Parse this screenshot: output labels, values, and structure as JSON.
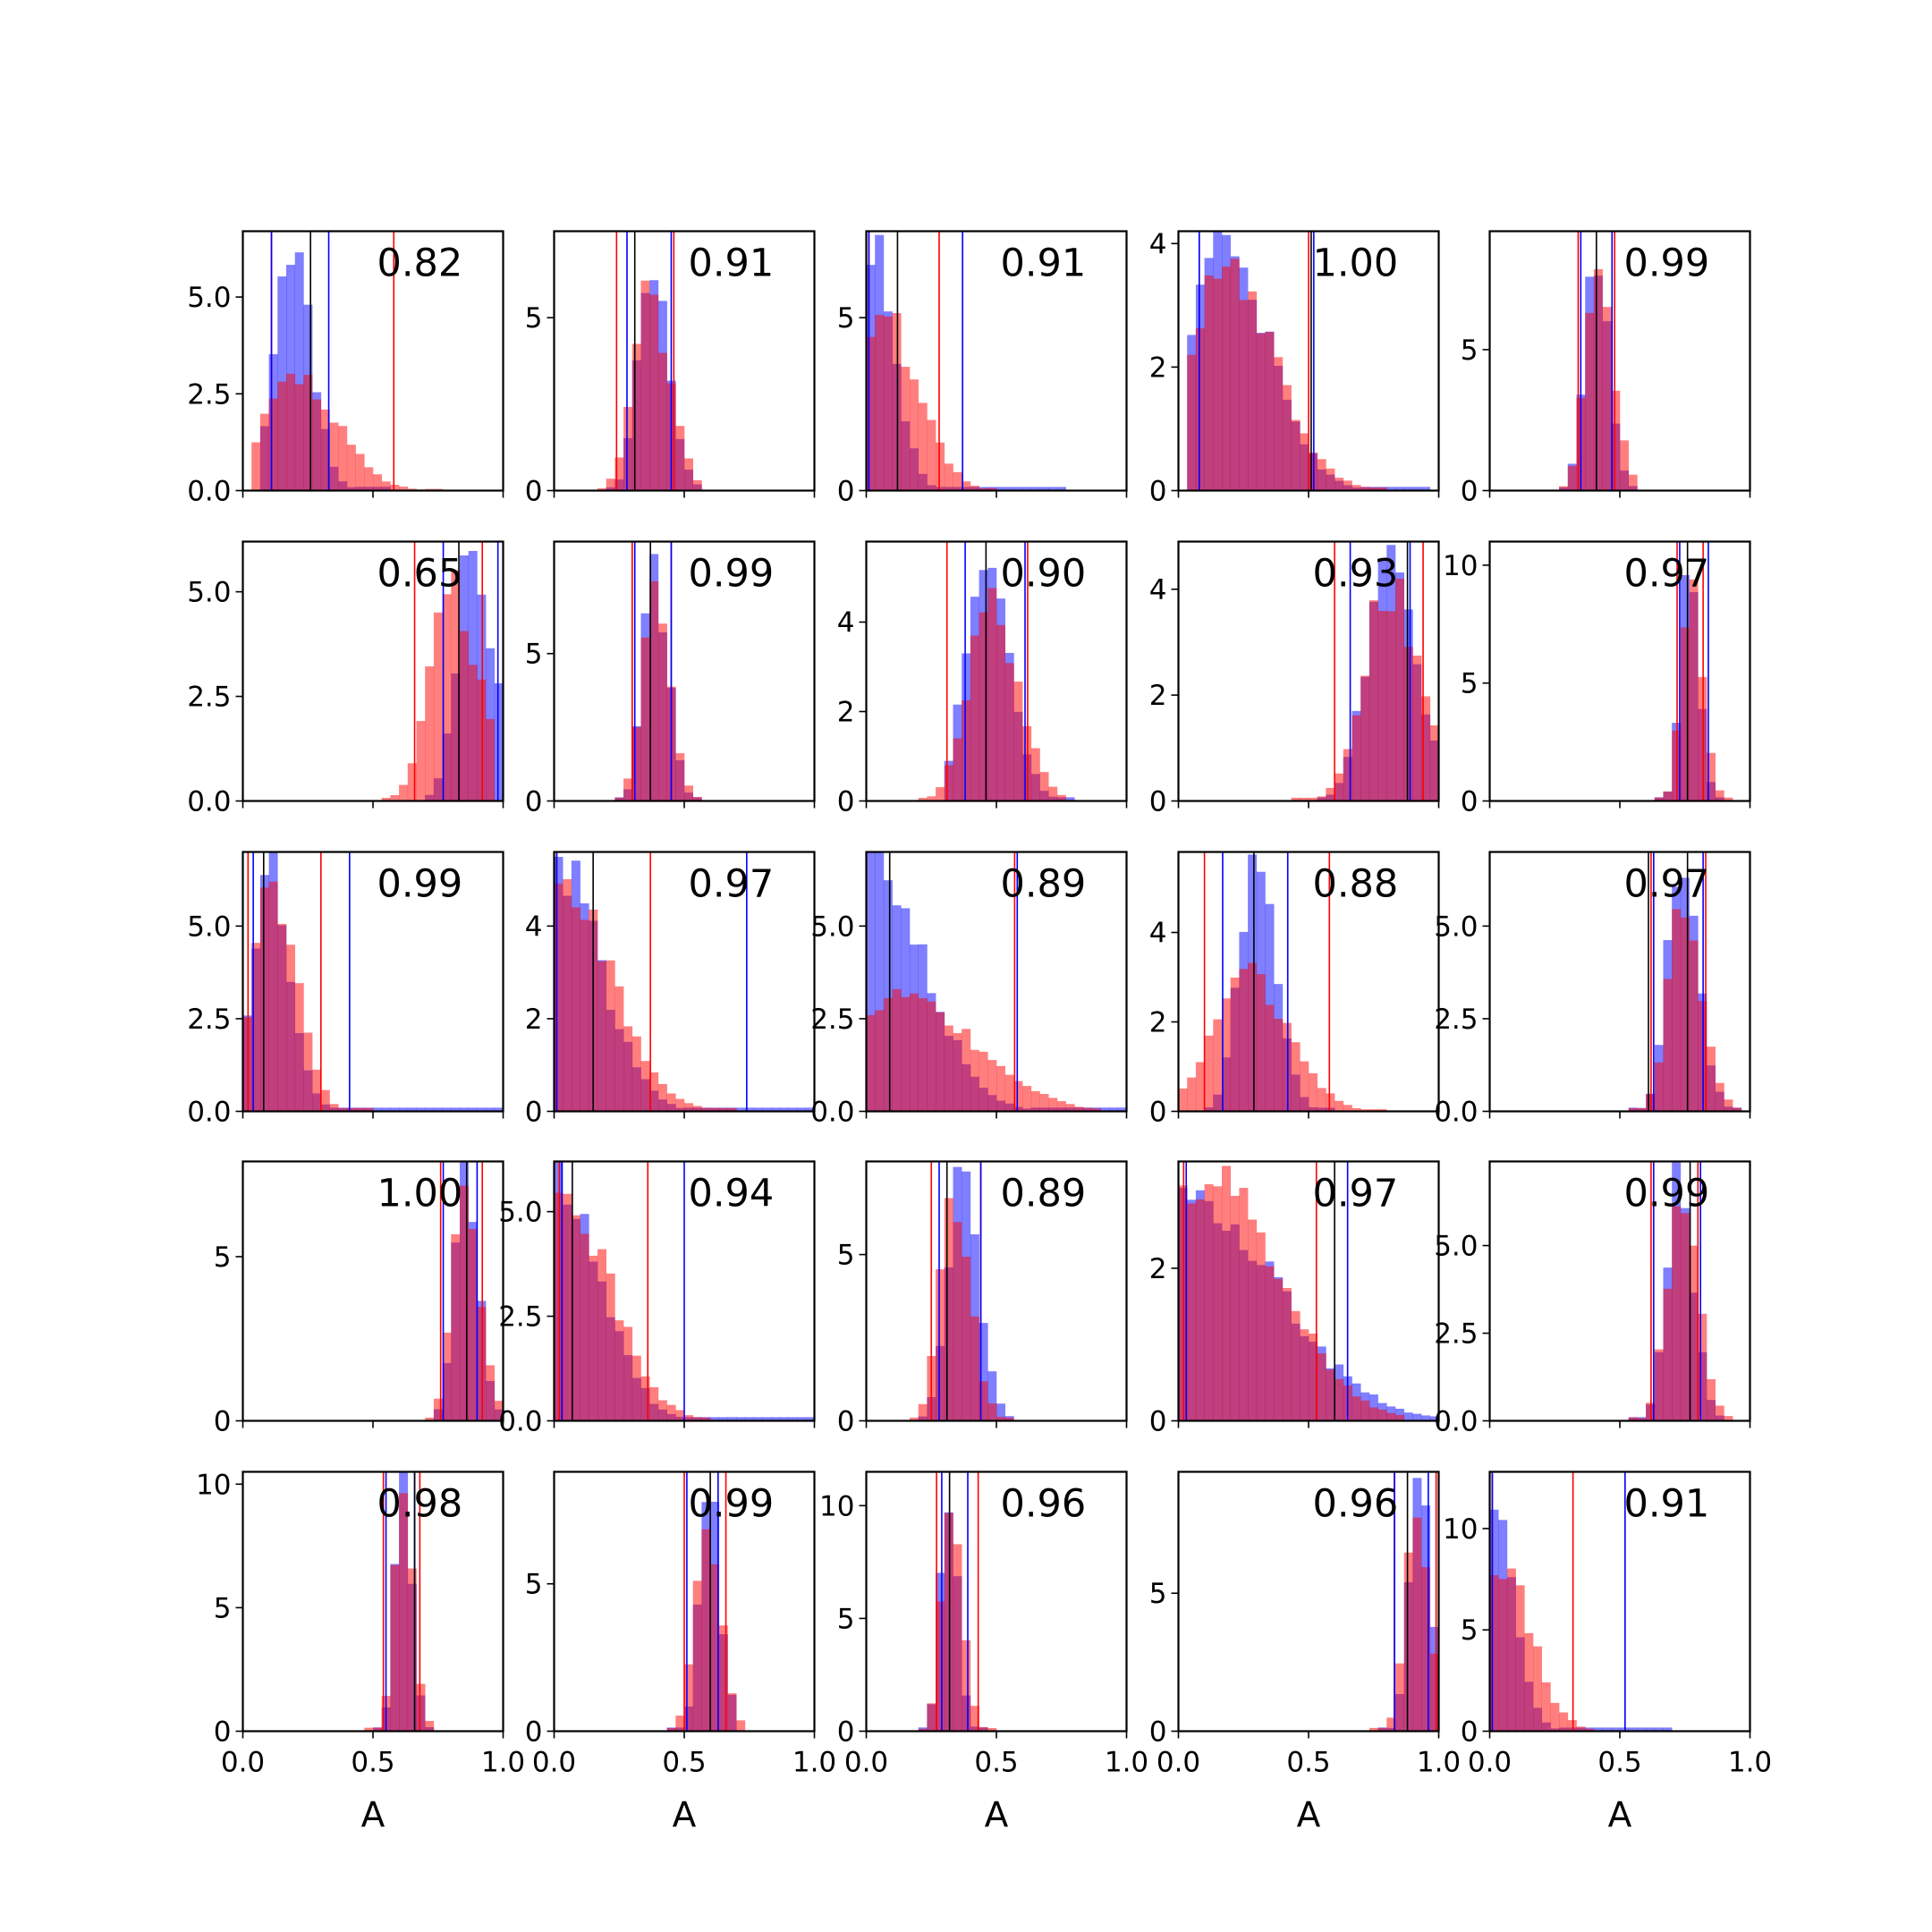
{
  "figure": {
    "type": "histogram-grid",
    "rows": 5,
    "cols": 5,
    "xlim": [
      0,
      1
    ],
    "xticks": [
      0.0,
      0.5,
      1.0
    ],
    "xtick_labels": [
      "0.0",
      "0.5",
      "1.0"
    ],
    "xlabel": "A",
    "colors": {
      "blue_hist": "#0000ff",
      "red_hist": "#ff0000",
      "blue_line": "#0000ff",
      "red_line": "#ff0000",
      "black_line": "#000000"
    }
  },
  "chart_data": [
    {
      "type": "bar",
      "score": "0.82",
      "ylim": [
        0,
        6.7
      ],
      "yticks": [
        0.0,
        2.5,
        5.0
      ],
      "ytick_labels": [
        "0.0",
        "2.5",
        "5.0"
      ],
      "blue": {
        "lo": 0.08,
        "hi": 0.55,
        "peak": 0.18,
        "spread": 0.06,
        "height": 6.5
      },
      "red": {
        "lo": 0.02,
        "hi": 0.75,
        "peak": 0.2,
        "spread": 0.12,
        "height": 2.9
      },
      "lines": {
        "red": [
          0.11,
          0.58
        ],
        "blue": [
          0.11,
          0.33
        ],
        "black": [
          0.26
        ]
      }
    },
    {
      "type": "bar",
      "score": "0.91",
      "ylim": [
        0,
        7.5
      ],
      "yticks": [
        0,
        5
      ],
      "ytick_labels": [
        "0",
        "5"
      ],
      "blue": {
        "lo": 0.2,
        "hi": 0.55,
        "peak": 0.37,
        "spread": 0.05,
        "height": 6.4
      },
      "red": {
        "lo": 0.17,
        "hi": 0.58,
        "peak": 0.36,
        "spread": 0.06,
        "height": 5.7
      },
      "lines": {
        "red": [
          0.24,
          0.46
        ],
        "blue": [
          0.28,
          0.45
        ],
        "black": [
          0.31
        ]
      }
    },
    {
      "type": "bar",
      "score": "0.91",
      "ylim": [
        0,
        7.5
      ],
      "yticks": [
        0,
        5
      ],
      "ytick_labels": [
        "0",
        "5"
      ],
      "blue": {
        "lo": 0.0,
        "hi": 0.75,
        "peak": 0.03,
        "spread": 0.06,
        "height": 7.0
      },
      "red": {
        "lo": 0.0,
        "hi": 0.5,
        "peak": 0.06,
        "spread": 0.1,
        "height": 5.1
      },
      "lines": {
        "red": [
          0.01,
          0.28
        ],
        "blue": [
          0.01,
          0.37
        ],
        "black": [
          0.12
        ]
      }
    },
    {
      "type": "bar",
      "score": "1.00",
      "ylim": [
        0,
        4.2
      ],
      "yticks": [
        0,
        2,
        4
      ],
      "ytick_labels": [
        "0",
        "2",
        "4"
      ],
      "blue": {
        "lo": 0.05,
        "hi": 0.95,
        "peak": 0.17,
        "spread": 0.13,
        "height": 4.0
      },
      "red": {
        "lo": 0.05,
        "hi": 0.8,
        "peak": 0.18,
        "spread": 0.14,
        "height": 3.5
      },
      "lines": {
        "red": [
          0.08,
          0.5
        ],
        "blue": [
          0.08,
          0.52
        ],
        "black": [
          0.51
        ]
      }
    },
    {
      "type": "bar",
      "score": "0.99",
      "ylim": [
        0,
        9.2
      ],
      "yticks": [
        0,
        5
      ],
      "ytick_labels": [
        "0",
        "5"
      ],
      "blue": {
        "lo": 0.28,
        "hi": 0.55,
        "peak": 0.4,
        "spread": 0.04,
        "height": 8.4
      },
      "red": {
        "lo": 0.26,
        "hi": 0.57,
        "peak": 0.41,
        "spread": 0.045,
        "height": 8.3
      },
      "lines": {
        "red": [
          0.34,
          0.48
        ],
        "blue": [
          0.35,
          0.47
        ],
        "black": [
          0.41
        ]
      }
    },
    {
      "type": "bar",
      "score": "0.65",
      "ylim": [
        0,
        6.2
      ],
      "yticks": [
        0.0,
        2.5,
        5.0
      ],
      "ytick_labels": [
        "0.0",
        "2.5",
        "5.0"
      ],
      "blue": {
        "lo": 0.7,
        "hi": 1.0,
        "peak": 0.88,
        "spread": 0.06,
        "height": 6.0
      },
      "red": {
        "lo": 0.55,
        "hi": 0.96,
        "peak": 0.8,
        "spread": 0.08,
        "height": 5.0
      },
      "lines": {
        "red": [
          0.66,
          0.92
        ],
        "blue": [
          0.77,
          0.98
        ],
        "black": [
          0.83
        ]
      }
    },
    {
      "type": "bar",
      "score": "0.99",
      "ylim": [
        0,
        8.8
      ],
      "yticks": [
        0,
        5
      ],
      "ytick_labels": [
        "0",
        "5"
      ],
      "blue": {
        "lo": 0.22,
        "hi": 0.55,
        "peak": 0.38,
        "spread": 0.04,
        "height": 8.2
      },
      "red": {
        "lo": 0.22,
        "hi": 0.55,
        "peak": 0.38,
        "spread": 0.045,
        "height": 7.3
      },
      "lines": {
        "red": [
          0.3,
          0.45
        ],
        "blue": [
          0.31,
          0.45
        ],
        "black": [
          0.37
        ]
      }
    },
    {
      "type": "bar",
      "score": "0.90",
      "ylim": [
        0,
        5.8
      ],
      "yticks": [
        0,
        2,
        4
      ],
      "ytick_labels": [
        "0",
        "2",
        "4"
      ],
      "blue": {
        "lo": 0.3,
        "hi": 0.8,
        "peak": 0.45,
        "spread": 0.07,
        "height": 5.5
      },
      "red": {
        "lo": 0.2,
        "hi": 0.75,
        "peak": 0.47,
        "spread": 0.08,
        "height": 4.6
      },
      "lines": {
        "red": [
          0.31,
          0.62
        ],
        "blue": [
          0.38,
          0.61
        ],
        "black": [
          0.46
        ]
      }
    },
    {
      "type": "bar",
      "score": "0.93",
      "ylim": [
        0,
        4.9
      ],
      "yticks": [
        0,
        2,
        4
      ],
      "ytick_labels": [
        "0",
        "2",
        "4"
      ],
      "blue": {
        "lo": 0.55,
        "hi": 1.0,
        "peak": 0.8,
        "spread": 0.08,
        "height": 4.5
      },
      "red": {
        "lo": 0.45,
        "hi": 1.0,
        "peak": 0.8,
        "spread": 0.09,
        "height": 4.1
      },
      "lines": {
        "red": [
          0.6,
          0.94
        ],
        "blue": [
          0.66,
          0.89
        ],
        "black": [
          0.88
        ]
      }
    },
    {
      "type": "bar",
      "score": "0.97",
      "ylim": [
        0,
        11
      ],
      "yticks": [
        0,
        5,
        10
      ],
      "ytick_labels": [
        "0",
        "5",
        "10"
      ],
      "blue": {
        "lo": 0.65,
        "hi": 0.9,
        "peak": 0.76,
        "spread": 0.03,
        "height": 10.4
      },
      "red": {
        "lo": 0.64,
        "hi": 0.92,
        "peak": 0.77,
        "spread": 0.035,
        "height": 9.7
      },
      "lines": {
        "red": [
          0.72,
          0.82
        ],
        "blue": [
          0.73,
          0.84
        ],
        "black": [
          0.76
        ]
      }
    },
    {
      "type": "bar",
      "score": "0.99",
      "ylim": [
        0,
        7.0
      ],
      "yticks": [
        0.0,
        2.5,
        5.0
      ],
      "ytick_labels": [
        "0.0",
        "2.5",
        "5.0"
      ],
      "blue": {
        "lo": 0.0,
        "hi": 1.0,
        "peak": 0.1,
        "spread": 0.06,
        "height": 6.6
      },
      "red": {
        "lo": 0.0,
        "hi": 0.5,
        "peak": 0.11,
        "spread": 0.07,
        "height": 6.0
      },
      "lines": {
        "red": [
          0.02,
          0.3
        ],
        "blue": [
          0.04,
          0.41
        ],
        "black": [
          0.08
        ]
      }
    },
    {
      "type": "bar",
      "score": "0.97",
      "ylim": [
        0,
        5.6
      ],
      "yticks": [
        0,
        2,
        4
      ],
      "ytick_labels": [
        "0",
        "2",
        "4"
      ],
      "blue": {
        "lo": 0.0,
        "hi": 1.0,
        "peak": 0.02,
        "spread": 0.12,
        "height": 5.3
      },
      "red": {
        "lo": 0.0,
        "hi": 0.7,
        "peak": 0.04,
        "spread": 0.14,
        "height": 4.8
      },
      "lines": {
        "red": [
          0.01,
          0.37
        ],
        "blue": [
          0.01,
          0.74
        ],
        "black": [
          0.15
        ]
      }
    },
    {
      "type": "bar",
      "score": "0.89",
      "ylim": [
        0,
        7.0
      ],
      "yticks": [
        0.0,
        2.5,
        5.0
      ],
      "ytick_labels": [
        "0.0",
        "2.5",
        "5.0"
      ],
      "blue": {
        "lo": 0.0,
        "hi": 1.0,
        "peak": 0.02,
        "spread": 0.15,
        "height": 6.8
      },
      "red": {
        "lo": 0.0,
        "hi": 0.9,
        "peak": 0.15,
        "spread": 0.2,
        "height": 3.1
      },
      "lines": {
        "red": [
          0.0,
          0.57
        ],
        "blue": [
          0.0,
          0.58
        ],
        "black": [
          0.09
        ]
      }
    },
    {
      "type": "bar",
      "score": "0.88",
      "ylim": [
        0,
        5.8
      ],
      "yticks": [
        0,
        2,
        4
      ],
      "ytick_labels": [
        "0",
        "2",
        "4"
      ],
      "blue": {
        "lo": 0.1,
        "hi": 0.6,
        "peak": 0.29,
        "spread": 0.06,
        "height": 5.5
      },
      "red": {
        "lo": 0.0,
        "hi": 0.8,
        "peak": 0.25,
        "spread": 0.12,
        "height": 3.2
      },
      "lines": {
        "red": [
          0.1,
          0.58
        ],
        "blue": [
          0.17,
          0.42
        ],
        "black": [
          0.29
        ]
      }
    },
    {
      "type": "bar",
      "score": "0.97",
      "ylim": [
        0,
        7.0
      ],
      "yticks": [
        0.0,
        2.5,
        5.0
      ],
      "ytick_labels": [
        "0.0",
        "2.5",
        "5.0"
      ],
      "blue": {
        "lo": 0.55,
        "hi": 0.95,
        "peak": 0.73,
        "spread": 0.05,
        "height": 6.7
      },
      "red": {
        "lo": 0.52,
        "hi": 0.98,
        "peak": 0.74,
        "spread": 0.055,
        "height": 5.7
      },
      "lines": {
        "red": [
          0.62,
          0.83
        ],
        "blue": [
          0.63,
          0.82
        ],
        "black": [
          0.61,
          0.76
        ]
      }
    },
    {
      "type": "bar",
      "score": "1.00",
      "ylim": [
        0,
        7.9
      ],
      "yticks": [
        0,
        5
      ],
      "ytick_labels": [
        "0",
        "5"
      ],
      "blue": {
        "lo": 0.72,
        "hi": 1.0,
        "peak": 0.85,
        "spread": 0.04,
        "height": 7.5
      },
      "red": {
        "lo": 0.7,
        "hi": 1.0,
        "peak": 0.85,
        "spread": 0.045,
        "height": 7.3
      },
      "lines": {
        "red": [
          0.76,
          0.92
        ],
        "blue": [
          0.77,
          0.9
        ],
        "black": [
          0.86
        ]
      }
    },
    {
      "type": "bar",
      "score": "0.94",
      "ylim": [
        0,
        6.2
      ],
      "yticks": [
        0.0,
        2.5,
        5.0
      ],
      "ytick_labels": [
        "0.0",
        "2.5",
        "5.0"
      ],
      "blue": {
        "lo": 0.0,
        "hi": 1.0,
        "peak": 0.02,
        "spread": 0.12,
        "height": 5.9
      },
      "red": {
        "lo": 0.0,
        "hi": 0.6,
        "peak": 0.05,
        "spread": 0.13,
        "height": 5.2
      },
      "lines": {
        "red": [
          0.02,
          0.36
        ],
        "blue": [
          0.03,
          0.5
        ],
        "black": [
          0.07
        ]
      }
    },
    {
      "type": "bar",
      "score": "0.89",
      "ylim": [
        0,
        7.8
      ],
      "yticks": [
        0,
        5
      ],
      "ytick_labels": [
        "0",
        "5"
      ],
      "blue": {
        "lo": 0.2,
        "hi": 0.55,
        "peak": 0.36,
        "spread": 0.05,
        "height": 7.4
      },
      "red": {
        "lo": 0.18,
        "hi": 0.55,
        "peak": 0.33,
        "spread": 0.05,
        "height": 6.6
      },
      "lines": {
        "red": [
          0.25,
          0.44
        ],
        "blue": [
          0.28,
          0.44
        ],
        "black": [
          0.31
        ]
      }
    },
    {
      "type": "bar",
      "score": "0.97",
      "ylim": [
        0,
        3.4
      ],
      "yticks": [
        0,
        2
      ],
      "ytick_labels": [
        "0",
        "2"
      ],
      "blue": {
        "lo": 0.0,
        "hi": 1.0,
        "peak": 0.05,
        "spread": 0.25,
        "height": 2.8
      },
      "red": {
        "lo": 0.0,
        "hi": 0.85,
        "peak": 0.12,
        "spread": 0.2,
        "height": 3.2
      },
      "lines": {
        "red": [
          0.02,
          0.53
        ],
        "blue": [
          0.03,
          0.65
        ],
        "black": [
          0.6
        ]
      }
    },
    {
      "type": "bar",
      "score": "0.99",
      "ylim": [
        0,
        7.4
      ],
      "yticks": [
        0.0,
        2.5,
        5.0
      ],
      "ytick_labels": [
        "0.0",
        "2.5",
        "5.0"
      ],
      "blue": {
        "lo": 0.55,
        "hi": 0.9,
        "peak": 0.72,
        "spread": 0.045,
        "height": 6.9
      },
      "red": {
        "lo": 0.55,
        "hi": 0.92,
        "peak": 0.73,
        "spread": 0.05,
        "height": 6.6
      },
      "lines": {
        "red": [
          0.62,
          0.8
        ],
        "blue": [
          0.63,
          0.81
        ],
        "black": [
          0.77
        ]
      }
    },
    {
      "type": "bar",
      "score": "0.98",
      "ylim": [
        0,
        10.5
      ],
      "yticks": [
        0,
        5,
        10
      ],
      "ytick_labels": [
        "0",
        "5",
        "10"
      ],
      "blue": {
        "lo": 0.5,
        "hi": 0.72,
        "peak": 0.61,
        "spread": 0.028,
        "height": 10.2
      },
      "red": {
        "lo": 0.48,
        "hi": 0.73,
        "peak": 0.61,
        "spread": 0.032,
        "height": 9.4
      },
      "lines": {
        "red": [
          0.54,
          0.68
        ],
        "blue": [
          0.55,
          0.66
        ],
        "black": [
          0.66
        ]
      }
    },
    {
      "type": "bar",
      "score": "0.99",
      "ylim": [
        0,
        8.8
      ],
      "yticks": [
        0,
        5
      ],
      "ytick_labels": [
        "0",
        "5"
      ],
      "blue": {
        "lo": 0.45,
        "hi": 0.7,
        "peak": 0.59,
        "spread": 0.035,
        "height": 8.3
      },
      "red": {
        "lo": 0.42,
        "hi": 0.72,
        "peak": 0.58,
        "spread": 0.042,
        "height": 7.2
      },
      "lines": {
        "red": [
          0.5,
          0.66
        ],
        "blue": [
          0.51,
          0.63
        ],
        "black": [
          0.6
        ]
      }
    },
    {
      "type": "bar",
      "score": "0.96",
      "ylim": [
        0,
        11.5
      ],
      "yticks": [
        0,
        5,
        10
      ],
      "ytick_labels": [
        "0",
        "5",
        "10"
      ],
      "blue": {
        "lo": 0.2,
        "hi": 0.45,
        "peak": 0.31,
        "spread": 0.028,
        "height": 11.0
      },
      "red": {
        "lo": 0.2,
        "hi": 0.5,
        "peak": 0.32,
        "spread": 0.035,
        "height": 9.2
      },
      "lines": {
        "red": [
          0.27,
          0.43
        ],
        "blue": [
          0.29,
          0.39
        ],
        "black": [
          0.32
        ]
      }
    },
    {
      "type": "bar",
      "score": "0.96",
      "ylim": [
        0,
        9.4
      ],
      "yticks": [
        0,
        5
      ],
      "ytick_labels": [
        "0",
        "5"
      ],
      "blue": {
        "lo": 0.76,
        "hi": 1.0,
        "peak": 0.92,
        "spread": 0.035,
        "height": 9.0
      },
      "red": {
        "lo": 0.75,
        "hi": 1.0,
        "peak": 0.91,
        "spread": 0.04,
        "height": 7.9
      },
      "lines": {
        "red": [
          0.83,
          0.99
        ],
        "blue": [
          0.83,
          0.96
        ],
        "black": [
          0.88
        ]
      }
    },
    {
      "type": "bar",
      "score": "0.91",
      "ylim": [
        0,
        12.8
      ],
      "yticks": [
        0,
        5,
        10
      ],
      "ytick_labels": [
        "0",
        "5",
        "10"
      ],
      "blue": {
        "lo": 0.0,
        "hi": 0.7,
        "peak": 0.01,
        "spread": 0.06,
        "height": 12.0
      },
      "red": {
        "lo": 0.0,
        "hi": 0.4,
        "peak": 0.03,
        "spread": 0.09,
        "height": 8.5
      },
      "lines": {
        "red": [
          0.01,
          0.32
        ],
        "blue": [
          0.01,
          0.52
        ],
        "black": [
          0.0
        ]
      }
    }
  ]
}
